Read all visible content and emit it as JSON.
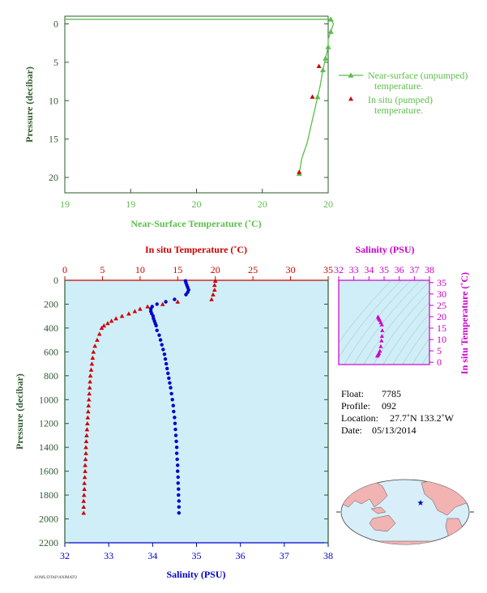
{
  "colors": {
    "near": "#5bbf4a",
    "red": "#cc0000",
    "blue": "#0000cc",
    "magenta": "#cc00cc",
    "axis_green": "#2e5a2e",
    "plot_bg": "#d0eef8",
    "map_land": "#f2b3b3",
    "map_ocean": "#d8eef8"
  },
  "chart_data": [
    {
      "type": "line",
      "xlabel": "Near-Surface Temperature (˚C)",
      "ylabel": "Pressure (decibar)",
      "x_tick_labels": [
        "19",
        "19",
        "20",
        "20",
        "20"
      ],
      "y_ticks": [
        0,
        5,
        10,
        15,
        20
      ],
      "xlim": [
        19.0,
        20.0
      ],
      "ylim": [
        22,
        -1
      ],
      "series": [
        {
          "name": "Near-surface (unpumped) temperature.",
          "x": [
            19.0,
            20.01,
            20.02,
            20.01,
            20.0,
            20.0,
            19.99,
            19.98,
            19.97,
            19.96,
            19.95,
            19.94,
            19.93,
            19.92,
            19.91,
            19.9,
            19.895,
            19.89
          ],
          "y": [
            -0.6,
            -0.6,
            0.0,
            1.0,
            2.0,
            3.0,
            4.5,
            6.0,
            8.0,
            9.5,
            11.0,
            12.5,
            14.0,
            15.5,
            16.5,
            17.5,
            18.5,
            19.5
          ],
          "markers_at": [
            1,
            3,
            5,
            6,
            7,
            9,
            17
          ]
        },
        {
          "name": "In situ (pumped) temperature.",
          "x": [
            19.965,
            19.94,
            19.89
          ],
          "y": [
            5.5,
            9.5,
            19.3
          ]
        }
      ],
      "legend_lines": [
        "Near-surface (unpumped)",
        "temperature.",
        "In situ (pumped)",
        "temperature."
      ]
    },
    {
      "type": "scatter",
      "ylabel": "Pressure (decibar)",
      "y_ticks": [
        0,
        200,
        400,
        600,
        800,
        1000,
        1200,
        1400,
        1600,
        1800,
        2000,
        2200
      ],
      "ylim": [
        2200,
        0
      ],
      "top_axis": {
        "label": "In situ Temperature (˚C)",
        "ticks": [
          0,
          5,
          10,
          15,
          20,
          25,
          30,
          35
        ],
        "lim": [
          0,
          35
        ]
      },
      "bottom_axis": {
        "label": "Salinity (PSU)",
        "ticks": [
          32,
          33,
          34,
          35,
          36,
          37,
          38
        ],
        "lim": [
          32,
          38
        ]
      },
      "temperature": {
        "p": [
          5,
          40,
          80,
          120,
          160,
          180,
          200,
          220,
          240,
          260,
          280,
          300,
          320,
          340,
          360,
          380,
          400,
          450,
          500,
          550,
          600,
          650,
          700,
          750,
          800,
          850,
          900,
          950,
          1000,
          1050,
          1100,
          1150,
          1200,
          1250,
          1300,
          1350,
          1400,
          1450,
          1500,
          1550,
          1600,
          1650,
          1700,
          1750,
          1800,
          1850,
          1900,
          1950
        ],
        "t": [
          20.0,
          19.9,
          19.9,
          19.7,
          19.5,
          15.0,
          13.0,
          11.0,
          10.0,
          9.3,
          8.5,
          7.6,
          6.8,
          6.2,
          5.7,
          5.2,
          4.9,
          4.6,
          4.3,
          4.0,
          3.8,
          3.7,
          3.6,
          3.5,
          3.4,
          3.35,
          3.3,
          3.25,
          3.2,
          3.15,
          3.1,
          3.05,
          3.0,
          2.95,
          2.9,
          2.85,
          2.8,
          2.8,
          2.75,
          2.7,
          2.7,
          2.65,
          2.6,
          2.6,
          2.55,
          2.5,
          2.5,
          2.5
        ]
      },
      "salinity": {
        "p": [
          5,
          20,
          40,
          60,
          80,
          100,
          120,
          160,
          180,
          200,
          220,
          240,
          260,
          280,
          300,
          320,
          340,
          360,
          380,
          420,
          460,
          500,
          540,
          580,
          620,
          660,
          700,
          740,
          780,
          820,
          860,
          900,
          950,
          1000,
          1050,
          1100,
          1150,
          1200,
          1250,
          1300,
          1350,
          1400,
          1450,
          1500,
          1550,
          1600,
          1650,
          1700,
          1750,
          1800,
          1850,
          1900,
          1950
        ],
        "s": [
          34.75,
          34.76,
          34.78,
          34.8,
          34.82,
          34.8,
          34.76,
          34.5,
          34.3,
          34.1,
          33.99,
          33.96,
          33.96,
          33.98,
          34.01,
          34.02,
          34.04,
          34.06,
          34.08,
          34.1,
          34.15,
          34.18,
          34.21,
          34.24,
          34.27,
          34.29,
          34.31,
          34.33,
          34.35,
          34.37,
          34.39,
          34.41,
          34.43,
          34.45,
          34.47,
          34.48,
          34.5,
          34.51,
          34.52,
          34.53,
          34.54,
          34.55,
          34.55,
          34.56,
          34.57,
          34.57,
          34.58,
          34.58,
          34.59,
          34.59,
          34.6,
          34.6,
          34.6
        ]
      }
    },
    {
      "type": "scatter",
      "top_axis": {
        "label": "Salinity (PSU)",
        "ticks": [
          32,
          33,
          34,
          35,
          36,
          37,
          38
        ],
        "lim": [
          32,
          38
        ]
      },
      "right_axis": {
        "label": "In situ Temperature (˚C)",
        "ticks": [
          0,
          5,
          10,
          15,
          20,
          25,
          30,
          35
        ],
        "lim": [
          -1,
          36
        ]
      },
      "ts_points": {
        "s": [
          34.55,
          34.58,
          34.62,
          34.66,
          34.72,
          34.78,
          34.83,
          34.86,
          34.88,
          34.85,
          34.78,
          34.72,
          34.67,
          34.63,
          34.6
        ],
        "t": [
          2.8,
          3.2,
          3.5,
          4.0,
          5.0,
          7.0,
          9.5,
          11.5,
          14.0,
          16.5,
          17.5,
          18.5,
          19.0,
          19.5,
          20.0
        ]
      }
    }
  ],
  "info": {
    "float_label": "Float:",
    "float_value": "7785",
    "profile_label": "Profile:",
    "profile_value": "092",
    "location_label": "Location:",
    "location_value": "27.7˚N  133.2˚W",
    "date_label": "Date:",
    "date_value": "05/13/2014"
  },
  "footer_text": "AOML/DTAP/ANIMATO"
}
